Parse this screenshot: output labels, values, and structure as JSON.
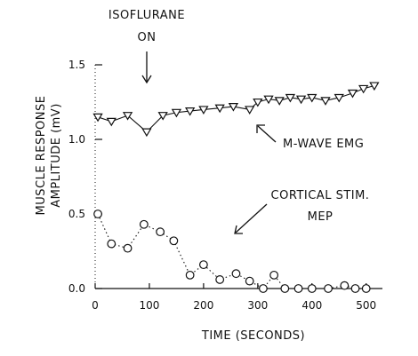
{
  "chart_data": {
    "type": "line",
    "title": "",
    "xlabel": "TIME (SECONDS)",
    "ylabel_lines": [
      "MUSCLE RESPONSE",
      "AMPLITUDE (mV)"
    ],
    "xlim": [
      0,
      530
    ],
    "ylim": [
      0,
      1.5
    ],
    "x_ticks": [
      0,
      100,
      200,
      300,
      400,
      500
    ],
    "y_ticks": [
      0.0,
      0.5,
      1.0,
      1.5
    ],
    "y_tick_labels": [
      "0.0",
      "0.5",
      "1.0",
      "1.5"
    ],
    "x_tick_labels": [
      "0",
      "100",
      "200",
      "300",
      "400",
      "500"
    ],
    "series": [
      {
        "marker": "triangle-down",
        "style": "solid",
        "color": "#111111",
        "x": [
          5,
          30,
          60,
          95,
          125,
          150,
          175,
          200,
          230,
          255,
          285,
          300,
          320,
          340,
          360,
          380,
          400,
          425,
          450,
          475,
          495,
          515
        ],
        "y": [
          1.15,
          1.12,
          1.16,
          1.05,
          1.16,
          1.18,
          1.19,
          1.2,
          1.21,
          1.22,
          1.2,
          1.25,
          1.27,
          1.26,
          1.28,
          1.27,
          1.28,
          1.26,
          1.28,
          1.31,
          1.34,
          1.36
        ]
      },
      {
        "marker": "circle",
        "style": "dotted",
        "color": "#111111",
        "x": [
          5,
          30,
          60,
          90,
          120,
          145,
          175,
          200,
          230,
          260,
          285,
          310,
          330,
          350,
          375,
          400,
          430,
          460,
          480,
          500
        ],
        "y": [
          0.5,
          0.3,
          0.27,
          0.43,
          0.38,
          0.32,
          0.09,
          0.16,
          0.06,
          0.1,
          0.05,
          0.0,
          0.09,
          0.0,
          0.0,
          0.0,
          0.0,
          0.02,
          0.0,
          0.0
        ]
      }
    ],
    "annotations": {
      "isoflurane_line1": "ISOFLURANE",
      "isoflurane_line2": "ON",
      "mwave_label": "M-WAVE EMG",
      "cortical_line1": "CORTICAL STIM.",
      "cortical_line2": "MEP"
    }
  }
}
